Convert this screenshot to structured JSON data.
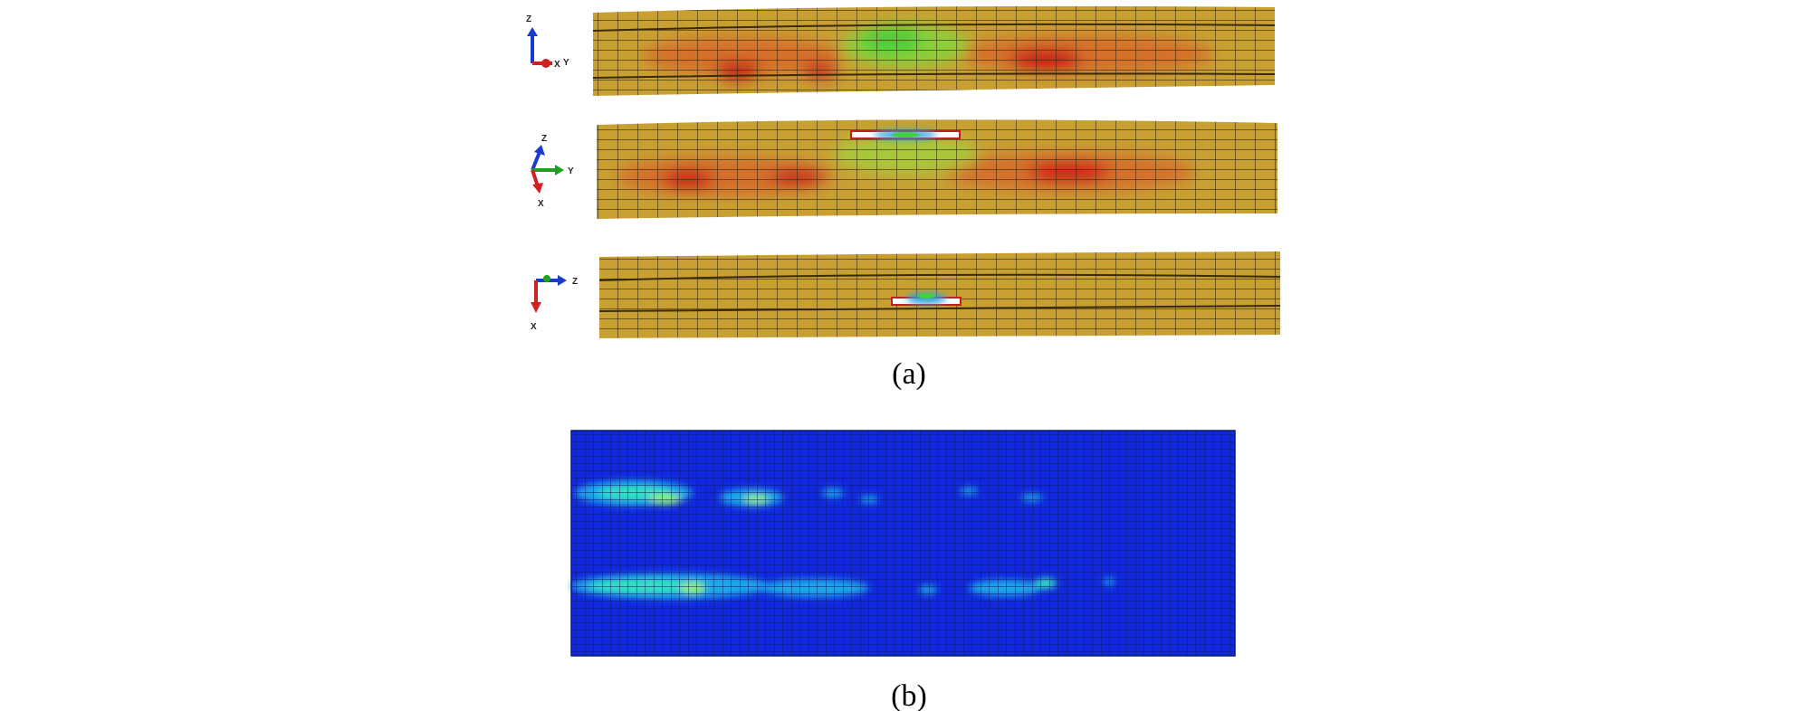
{
  "panel_a": {
    "caption": "(a)",
    "triads": [
      {
        "labels": [
          "Z",
          "X",
          "Y"
        ]
      },
      {
        "labels": [
          "Z",
          "Y",
          "X"
        ]
      },
      {
        "labels": [
          "Z",
          "X"
        ]
      }
    ]
  },
  "panel_b": {
    "caption": "(b)"
  }
}
